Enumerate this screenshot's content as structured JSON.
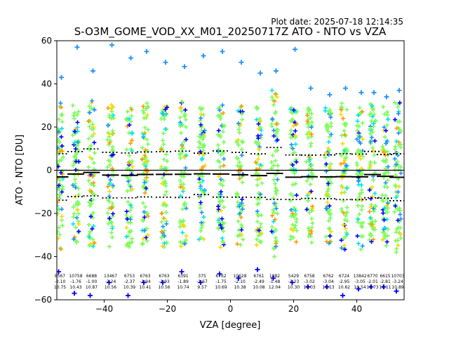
{
  "chart_data": {
    "type": "scatter",
    "title": "S-O3M_GOME_VOD_XX_M01_20250717Z ATO - NTO vs VZA",
    "subtitle": "Plot date: 2025-07-18 12:14:35",
    "xlabel": "VZA [degree]",
    "ylabel": "ATO - NTO [DU]",
    "xlim": [
      -55,
      55
    ],
    "ylim": [
      -60,
      60
    ],
    "xticks": [
      -40,
      -20,
      0,
      20,
      40
    ],
    "yticks": [
      -60,
      -40,
      -20,
      0,
      20,
      40,
      60
    ],
    "zero_line": 0,
    "point_colors": [
      "#7CFC5A",
      "#00E5EE",
      "#FFD700",
      "#FF9900",
      "#0000FF",
      "#1E90FF"
    ],
    "bins": [
      {
        "vza": -54,
        "count": "8567",
        "mean": "-3.10",
        "std": "10.75",
        "ymin": -47,
        "ymax": 43
      },
      {
        "vza": -49,
        "count": "10758",
        "mean": "-1.76",
        "std": "10.43",
        "ymin": -57,
        "ymax": 57
      },
      {
        "vza": -44,
        "count": "6688",
        "mean": "-1.00",
        "std": "10.87",
        "ymin": -58,
        "ymax": 46
      },
      {
        "vza": -38,
        "count": "13467",
        "mean": "-2.24",
        "std": "10.56",
        "ymin": -52,
        "ymax": 58
      },
      {
        "vza": -32,
        "count": "6753",
        "mean": "-2.37",
        "std": "10.39",
        "ymin": -58,
        "ymax": 52
      },
      {
        "vza": -27,
        "count": "6763",
        "mean": "-1.94",
        "std": "10.41",
        "ymin": -52,
        "ymax": 55
      },
      {
        "vza": -21,
        "count": "6763",
        "mean": "-1.93",
        "std": "10.56",
        "ymin": -52,
        "ymax": 50
      },
      {
        "vza": -15,
        "count": "6391",
        "mean": "-1.89",
        "std": "10.74",
        "ymin": -47,
        "ymax": 48
      },
      {
        "vza": -9,
        "count": "375",
        "mean": "-1.67",
        "std": "9.57",
        "ymin": -52,
        "ymax": 53
      },
      {
        "vza": -3,
        "count": "6762",
        "mean": "-1.75",
        "std": "10.69",
        "ymin": -48,
        "ymax": 55
      },
      {
        "vza": 3,
        "count": "10628",
        "mean": "-2.10",
        "std": "10.38",
        "ymin": -50,
        "ymax": 50
      },
      {
        "vza": 9,
        "count": "6761",
        "mean": "-2.49",
        "std": "10.08",
        "ymin": -46,
        "ymax": 45
      },
      {
        "vza": 14,
        "count": "1882",
        "mean": "-1.48",
        "std": "12.04",
        "ymin": -50,
        "ymax": 46
      },
      {
        "vza": 20,
        "count": "5429",
        "mean": "-3.23",
        "std": "10.30",
        "ymin": -52,
        "ymax": 56
      },
      {
        "vza": 25,
        "count": "6758",
        "mean": "-3.02",
        "std": "10.03",
        "ymin": -54,
        "ymax": 38
      },
      {
        "vza": 31,
        "count": "6762",
        "mean": "-3.04",
        "std": "10.13",
        "ymin": -54,
        "ymax": 35
      },
      {
        "vza": 36,
        "count": "6724",
        "mean": "-2.95",
        "std": "10.62",
        "ymin": -58,
        "ymax": 38
      },
      {
        "vza": 41,
        "count": "13842",
        "mean": "-3.05",
        "std": "10.54",
        "ymin": -55,
        "ymax": 36
      },
      {
        "vza": 45,
        "count": "6770",
        "mean": "-2.01",
        "std": "10.73",
        "ymin": -54,
        "ymax": 36
      },
      {
        "vza": 49,
        "count": "6615",
        "mean": "-2.81",
        "std": "10.11",
        "ymin": -54,
        "ymax": 34
      },
      {
        "vza": 53,
        "count": "10703",
        "mean": "-3.24",
        "std": "10.89",
        "ymin": -56,
        "ymax": 37
      }
    ]
  }
}
